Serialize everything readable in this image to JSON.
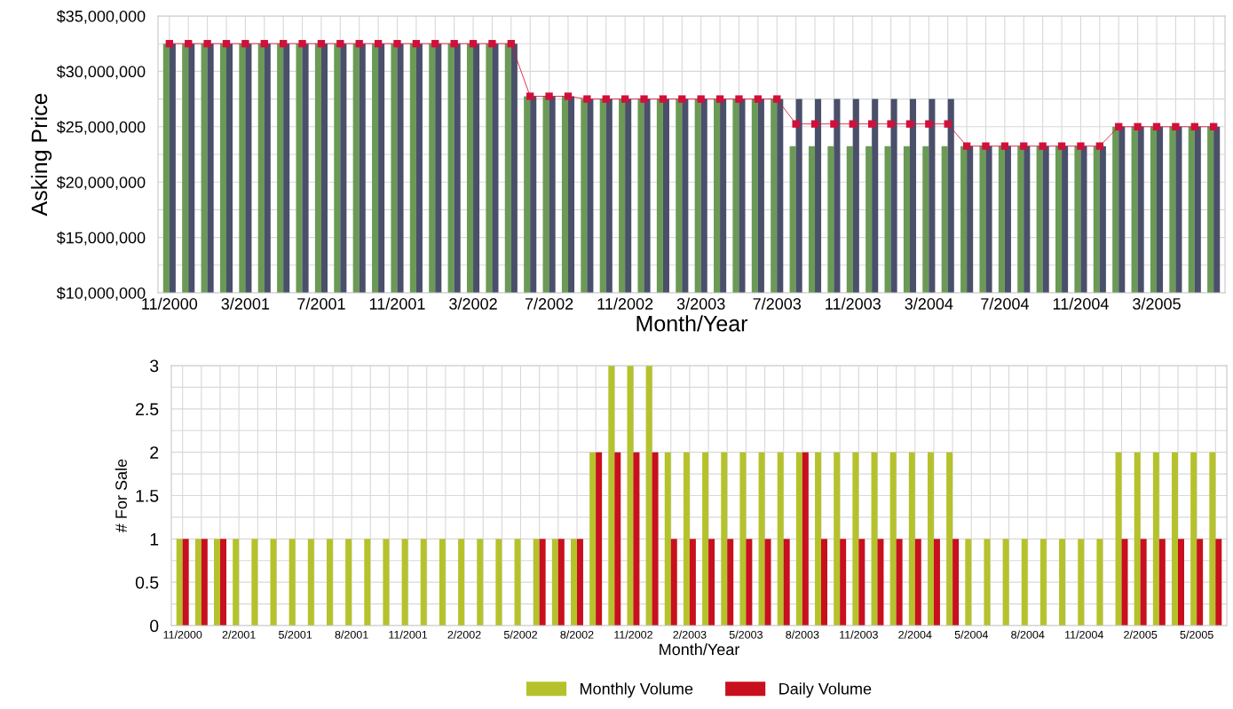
{
  "chart_data": [
    {
      "type": "bar",
      "xlabel": "Month/Year",
      "ylabel": "Asking Price",
      "categories": [
        "11/2000",
        null,
        null,
        null,
        "3/2001",
        null,
        null,
        null,
        "7/2001",
        null,
        null,
        null,
        "11/2001",
        null,
        null,
        null,
        "3/2002",
        null,
        null,
        null,
        "7/2002",
        null,
        null,
        null,
        "11/2002",
        null,
        null,
        null,
        "3/2003",
        null,
        null,
        null,
        "7/2003",
        null,
        null,
        null,
        "11/2003",
        null,
        null,
        null,
        "3/2004",
        null,
        null,
        null,
        "7/2004",
        null,
        null,
        null,
        "11/2004",
        null,
        null,
        null,
        "3/2005",
        null,
        null,
        null
      ],
      "series": [
        {
          "type": "bar",
          "color": "#6a9a55",
          "values": [
            32500000,
            32500000,
            32500000,
            32500000,
            32500000,
            32500000,
            32500000,
            32500000,
            32500000,
            32500000,
            32500000,
            32500000,
            32500000,
            32500000,
            32500000,
            32500000,
            32500000,
            32500000,
            32500000,
            27750000,
            27750000,
            27750000,
            27500000,
            27500000,
            27500000,
            27500000,
            27500000,
            27500000,
            27500000,
            27500000,
            27500000,
            27500000,
            27500000,
            23250000,
            23250000,
            23250000,
            23250000,
            23250000,
            23250000,
            23250000,
            23250000,
            23250000,
            23250000,
            23250000,
            23250000,
            23250000,
            23250000,
            23250000,
            23250000,
            23250000,
            25000000,
            25000000,
            25000000,
            25000000,
            25000000,
            25000000
          ]
        },
        {
          "type": "bar",
          "color": "#4a4f6a",
          "values": [
            32500000,
            32500000,
            32500000,
            32500000,
            32500000,
            32500000,
            32500000,
            32500000,
            32500000,
            32500000,
            32500000,
            32500000,
            32500000,
            32500000,
            32500000,
            32500000,
            32500000,
            32500000,
            32500000,
            27750000,
            27750000,
            27750000,
            27500000,
            27500000,
            27500000,
            27500000,
            27500000,
            27500000,
            27500000,
            27500000,
            27500000,
            27500000,
            27500000,
            27500000,
            27500000,
            27500000,
            27500000,
            27500000,
            27500000,
            27500000,
            27500000,
            27500000,
            23250000,
            23250000,
            23250000,
            23250000,
            23250000,
            23250000,
            23250000,
            23250000,
            25000000,
            25000000,
            25000000,
            25000000,
            25000000,
            25000000
          ]
        },
        {
          "type": "line",
          "color": "#d0103a",
          "marker": "square",
          "values": [
            32500000,
            32500000,
            32500000,
            32500000,
            32500000,
            32500000,
            32500000,
            32500000,
            32500000,
            32500000,
            32500000,
            32500000,
            32500000,
            32500000,
            32500000,
            32500000,
            32500000,
            32500000,
            32500000,
            27750000,
            27750000,
            27750000,
            27500000,
            27500000,
            27500000,
            27500000,
            27500000,
            27500000,
            27500000,
            27500000,
            27500000,
            27500000,
            27500000,
            25250000,
            25250000,
            25250000,
            25250000,
            25250000,
            25250000,
            25250000,
            25250000,
            25250000,
            23250000,
            23250000,
            23250000,
            23250000,
            23250000,
            23250000,
            23250000,
            23250000,
            25000000,
            25000000,
            25000000,
            25000000,
            25000000,
            25000000
          ]
        }
      ],
      "ylim": [
        10000000,
        35000000
      ],
      "yticks": [
        {
          "value": 10000000,
          "label": "$10,000,000"
        },
        {
          "value": 12500000,
          "label": null
        },
        {
          "value": 15000000,
          "label": "$15,000,000"
        },
        {
          "value": 17500000,
          "label": null
        },
        {
          "value": 20000000,
          "label": "$20,000,000"
        },
        {
          "value": 22500000,
          "label": null
        },
        {
          "value": 25000000,
          "label": "$25,000,000"
        },
        {
          "value": 27500000,
          "label": null
        },
        {
          "value": 30000000,
          "label": "$30,000,000"
        },
        {
          "value": 32500000,
          "label": null
        },
        {
          "value": 35000000,
          "label": "$35,000,000"
        }
      ],
      "grid": true
    },
    {
      "type": "bar",
      "xlabel": "Month/Year",
      "ylabel": "# For Sale",
      "categories": [
        "11/2000",
        null,
        null,
        "2/2001",
        null,
        null,
        "5/2001",
        null,
        null,
        "8/2001",
        null,
        null,
        "11/2001",
        null,
        null,
        "2/2002",
        null,
        null,
        "5/2002",
        null,
        null,
        "8/2002",
        null,
        null,
        "11/2002",
        null,
        null,
        "2/2003",
        null,
        null,
        "5/2003",
        null,
        null,
        "8/2003",
        null,
        null,
        "11/2003",
        null,
        null,
        "2/2004",
        null,
        null,
        "5/2004",
        null,
        null,
        "8/2004",
        null,
        null,
        "11/2004",
        null,
        null,
        "2/2005",
        null,
        null,
        "5/2005",
        null
      ],
      "series": [
        {
          "name": "Monthly Volume",
          "color": "#b5c22c",
          "values": [
            1,
            1,
            1,
            1,
            1,
            1,
            1,
            1,
            1,
            1,
            1,
            1,
            1,
            1,
            1,
            1,
            1,
            1,
            1,
            1,
            1,
            1,
            2,
            3,
            3,
            3,
            2,
            2,
            2,
            2,
            2,
            2,
            2,
            2,
            2,
            2,
            2,
            2,
            2,
            2,
            2,
            2,
            1,
            1,
            1,
            1,
            1,
            1,
            1,
            1,
            2,
            2,
            2,
            2,
            2,
            2
          ]
        },
        {
          "name": "Daily Volume",
          "color": "#c8101e",
          "values": [
            1,
            1,
            1,
            0,
            0,
            0,
            0,
            0,
            0,
            0,
            0,
            0,
            0,
            0,
            0,
            0,
            0,
            0,
            0,
            1,
            1,
            1,
            2,
            2,
            2,
            2,
            1,
            1,
            1,
            1,
            1,
            1,
            1,
            2,
            1,
            1,
            1,
            1,
            1,
            1,
            1,
            1,
            0,
            0,
            0,
            0,
            0,
            0,
            0,
            0,
            1,
            1,
            1,
            1,
            1,
            1
          ]
        }
      ],
      "ylim": [
        0,
        3
      ],
      "yticks": [
        0,
        {
          "value": 0.25,
          "label": null
        },
        0.5,
        {
          "value": 0.75,
          "label": null
        },
        1,
        {
          "value": 1.25,
          "label": null
        },
        1.5,
        {
          "value": 1.75,
          "label": null
        },
        2,
        {
          "value": 2.25,
          "label": null
        },
        2.5,
        {
          "value": 2.75,
          "label": null
        },
        3
      ],
      "grid": true,
      "legend": "bottom"
    }
  ]
}
